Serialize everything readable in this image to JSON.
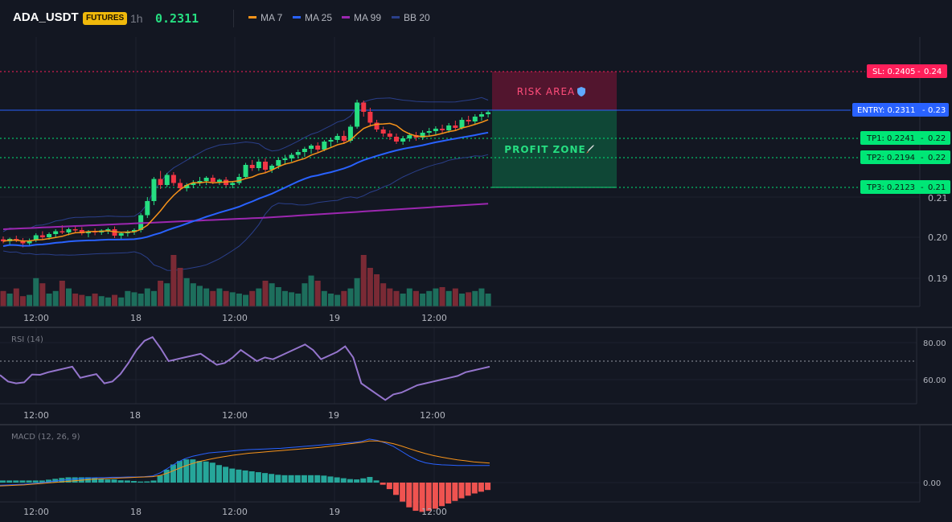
{
  "header": {
    "symbol": "ADA_USDT",
    "badge": "FUTURES",
    "timeframe": "1h",
    "last_price": "0.2311",
    "indicators": [
      {
        "label": "MA 7",
        "color": "#f7931a"
      },
      {
        "label": "MA 25",
        "color": "#2962ff"
      },
      {
        "label": "MA 99",
        "color": "#9c27b0"
      },
      {
        "label": "BB 20",
        "color": "#2a3f8a"
      }
    ]
  },
  "colors": {
    "up": "#26de81",
    "down": "#f23645",
    "volume_up": "#1d6e5c",
    "volume_down": "#7a2a35",
    "sl": "#ff1f5a",
    "entry": "#2962ff",
    "tp": "#00e676"
  },
  "levels": {
    "sl": {
      "label": "SL: 0.2405",
      "axis": "0.24",
      "price": 0.2405
    },
    "entry": {
      "label": "ENTRY: 0.2311",
      "axis": "0.23",
      "price": 0.2311
    },
    "tp": [
      {
        "label": "TP1: 0.2241",
        "axis": "0.22",
        "price": 0.2241
      },
      {
        "label": "TP2: 0.2194",
        "axis": "0.22",
        "price": 0.2194
      },
      {
        "label": "TP3: 0.2123",
        "axis": "0.21",
        "price": 0.2123
      }
    ]
  },
  "zones": {
    "risk_label": "RISK AREA",
    "profit_label": "PROFIT ZONE",
    "risk_icon": "shield-icon",
    "profit_icon": "rocket-icon"
  },
  "price_axis": {
    "ticks": [
      "0.21",
      "0.20",
      "0.19"
    ]
  },
  "time_axis": {
    "labels": [
      "12:00",
      "18",
      "12:00",
      "19",
      "12:00"
    ]
  },
  "rsi": {
    "title": "RSI (14)",
    "ticks": [
      "80.00",
      "60.00"
    ],
    "values": [
      62.5,
      59,
      58,
      58.5,
      62.8,
      62.6,
      64,
      65,
      66,
      67,
      61,
      62,
      63,
      58,
      59,
      63,
      69,
      76,
      81,
      83,
      77,
      70,
      71,
      72,
      73,
      74,
      71,
      68,
      69,
      72,
      76,
      73,
      70,
      72,
      71,
      73,
      75,
      77,
      79,
      76,
      71,
      73,
      75,
      78,
      72,
      58,
      55,
      52,
      49,
      52,
      53,
      55,
      57,
      58,
      59,
      60,
      61,
      62,
      64,
      65,
      66,
      67
    ]
  },
  "macd": {
    "title": "MACD (12, 26, 9)",
    "ticks": [
      "0.00"
    ]
  },
  "chart_data": {
    "type": "candlestick",
    "series": [
      {
        "name": "MA 7"
      },
      {
        "name": "MA 25"
      },
      {
        "name": "MA 99"
      },
      {
        "name": "BB 20"
      }
    ],
    "ohlc": [
      [
        0.1995,
        0.2002,
        0.1985,
        0.199
      ],
      [
        0.199,
        0.1999,
        0.198,
        0.1996
      ],
      [
        0.1996,
        0.2004,
        0.1988,
        0.1992
      ],
      [
        0.1992,
        0.1998,
        0.1975,
        0.1985
      ],
      [
        0.1985,
        0.1997,
        0.198,
        0.1992
      ],
      [
        0.1992,
        0.201,
        0.1988,
        0.2005
      ],
      [
        0.2005,
        0.2015,
        0.1995,
        0.2
      ],
      [
        0.2,
        0.2012,
        0.1994,
        0.2008
      ],
      [
        0.2008,
        0.202,
        0.2,
        0.2015
      ],
      [
        0.2015,
        0.203,
        0.2008,
        0.2012
      ],
      [
        0.2012,
        0.2024,
        0.2005,
        0.202
      ],
      [
        0.202,
        0.2028,
        0.201,
        0.2018
      ],
      [
        0.2018,
        0.2025,
        0.2005,
        0.201
      ],
      [
        0.201,
        0.2018,
        0.2,
        0.2015
      ],
      [
        0.2015,
        0.2022,
        0.2005,
        0.2012
      ],
      [
        0.2012,
        0.202,
        0.2006,
        0.2017
      ],
      [
        0.2017,
        0.2024,
        0.2008,
        0.202
      ],
      [
        0.202,
        0.2027,
        0.1998,
        0.2004
      ],
      [
        0.2004,
        0.2012,
        0.1996,
        0.201
      ],
      [
        0.201,
        0.2018,
        0.2002,
        0.2013
      ],
      [
        0.2013,
        0.2022,
        0.2006,
        0.2018
      ],
      [
        0.2018,
        0.206,
        0.2012,
        0.2055
      ],
      [
        0.2055,
        0.21,
        0.2048,
        0.209
      ],
      [
        0.209,
        0.215,
        0.208,
        0.2145
      ],
      [
        0.2145,
        0.2165,
        0.212,
        0.213
      ],
      [
        0.213,
        0.216,
        0.2125,
        0.2155
      ],
      [
        0.2155,
        0.2162,
        0.2128,
        0.2135
      ],
      [
        0.2135,
        0.2145,
        0.2115,
        0.2122
      ],
      [
        0.2122,
        0.2135,
        0.2114,
        0.213
      ],
      [
        0.213,
        0.2142,
        0.2122,
        0.2135
      ],
      [
        0.2135,
        0.215,
        0.2128,
        0.214
      ],
      [
        0.214,
        0.2152,
        0.213,
        0.2148
      ],
      [
        0.2148,
        0.2155,
        0.2132,
        0.2138
      ],
      [
        0.2138,
        0.2146,
        0.213,
        0.2143
      ],
      [
        0.2143,
        0.215,
        0.2125,
        0.213
      ],
      [
        0.213,
        0.214,
        0.2122,
        0.2135
      ],
      [
        0.2135,
        0.2158,
        0.213,
        0.215
      ],
      [
        0.215,
        0.2185,
        0.2145,
        0.218
      ],
      [
        0.218,
        0.2192,
        0.2165,
        0.2172
      ],
      [
        0.2172,
        0.2195,
        0.2165,
        0.2188
      ],
      [
        0.2188,
        0.2196,
        0.216,
        0.2168
      ],
      [
        0.2168,
        0.2182,
        0.216,
        0.2178
      ],
      [
        0.2178,
        0.2198,
        0.217,
        0.2192
      ],
      [
        0.2192,
        0.2205,
        0.218,
        0.2196
      ],
      [
        0.2196,
        0.221,
        0.2188,
        0.2205
      ],
      [
        0.2205,
        0.2218,
        0.2196,
        0.2212
      ],
      [
        0.2212,
        0.2225,
        0.22,
        0.222
      ],
      [
        0.222,
        0.2232,
        0.2208,
        0.2228
      ],
      [
        0.2228,
        0.2236,
        0.2212,
        0.2218
      ],
      [
        0.2218,
        0.2242,
        0.2214,
        0.2238
      ],
      [
        0.2238,
        0.2248,
        0.2225,
        0.2242
      ],
      [
        0.2242,
        0.2258,
        0.2235,
        0.2252
      ],
      [
        0.2252,
        0.2265,
        0.2232,
        0.224
      ],
      [
        0.224,
        0.228,
        0.2235,
        0.2275
      ],
      [
        0.2275,
        0.2342,
        0.227,
        0.2335
      ],
      [
        0.2335,
        0.234,
        0.23,
        0.2312
      ],
      [
        0.2312,
        0.2322,
        0.2275,
        0.2285
      ],
      [
        0.2285,
        0.2292,
        0.2262,
        0.2268
      ],
      [
        0.2268,
        0.2275,
        0.225,
        0.2258
      ],
      [
        0.2258,
        0.2266,
        0.2242,
        0.225
      ],
      [
        0.225,
        0.2258,
        0.2232,
        0.2238
      ],
      [
        0.2238,
        0.2252,
        0.223,
        0.2246
      ],
      [
        0.2246,
        0.226,
        0.2238,
        0.2254
      ],
      [
        0.2254,
        0.2262,
        0.224,
        0.2248
      ],
      [
        0.2248,
        0.2266,
        0.2242,
        0.226
      ],
      [
        0.226,
        0.2272,
        0.225,
        0.2264
      ],
      [
        0.2264,
        0.2276,
        0.2255,
        0.227
      ],
      [
        0.227,
        0.228,
        0.2258,
        0.2266
      ],
      [
        0.2266,
        0.2284,
        0.226,
        0.2278
      ],
      [
        0.2278,
        0.229,
        0.2266,
        0.2272
      ],
      [
        0.2272,
        0.2298,
        0.2268,
        0.2292
      ],
      [
        0.2292,
        0.2302,
        0.228,
        0.2288
      ],
      [
        0.2288,
        0.2306,
        0.2282,
        0.23
      ],
      [
        0.23,
        0.2312,
        0.229,
        0.2306
      ],
      [
        0.2306,
        0.2315,
        0.2298,
        0.2311
      ]
    ],
    "volume": [
      12,
      10,
      14,
      8,
      9,
      22,
      18,
      10,
      12,
      20,
      14,
      10,
      9,
      8,
      10,
      8,
      7,
      9,
      7,
      12,
      11,
      10,
      14,
      12,
      20,
      18,
      40,
      30,
      22,
      18,
      16,
      14,
      12,
      14,
      12,
      11,
      10,
      9,
      12,
      14,
      20,
      18,
      15,
      12,
      11,
      10,
      18,
      24,
      20,
      12,
      10,
      9,
      12,
      14,
      22,
      40,
      30,
      25,
      18,
      14,
      12,
      10,
      14,
      12,
      10,
      12,
      14,
      15,
      12,
      14,
      10,
      11,
      12,
      14,
      10
    ],
    "macd": [
      -8e-05,
      -7e-05,
      -6e-05,
      -5e-05,
      -3e-05,
      -1e-05,
      2e-05,
      5e-05,
      8e-05,
      0.0001,
      0.00012,
      0.00014,
      0.00015,
      0.00015,
      0.00016,
      0.00016,
      0.00017,
      0.00017,
      0.00018,
      0.0002,
      0.0003,
      0.00045,
      0.0006,
      0.00072,
      0.0008,
      0.00085,
      0.0009,
      0.00092,
      0.00094,
      0.00096,
      0.00098,
      0.001,
      0.00101,
      0.00102,
      0.00103,
      0.00104,
      0.00106,
      0.00108,
      0.0011,
      0.00112,
      0.00114,
      0.00116,
      0.00118,
      0.0012,
      0.00122,
      0.00125,
      0.00132,
      0.00128,
      0.0012,
      0.0011,
      0.00095,
      0.0008,
      0.00068,
      0.0006,
      0.00056,
      0.00054,
      0.00053,
      0.00052,
      0.00052,
      0.00052,
      0.00052,
      0.00052
    ],
    "signal": [
      -0.0001,
      -9e-05,
      -8e-05,
      -7e-05,
      -5e-05,
      -3e-05,
      -1e-05,
      1e-05,
      3e-05,
      5e-05,
      7e-05,
      9e-05,
      0.00011,
      0.00012,
      0.00013,
      0.00014,
      0.00015,
      0.00016,
      0.00017,
      0.00018,
      0.00022,
      0.0003,
      0.0004,
      0.0005,
      0.00058,
      0.00065,
      0.0007,
      0.00075,
      0.00079,
      0.00083,
      0.00086,
      0.00089,
      0.00091,
      0.00093,
      0.00095,
      0.00097,
      0.00099,
      0.00101,
      0.00103,
      0.00105,
      0.00107,
      0.0011,
      0.00113,
      0.00116,
      0.00119,
      0.00122,
      0.00126,
      0.00126,
      0.00123,
      0.00118,
      0.00111,
      0.00103,
      0.00095,
      0.00088,
      0.00082,
      0.00077,
      0.00073,
      0.00069,
      0.00066,
      0.00063,
      0.00061,
      0.00059
    ]
  }
}
